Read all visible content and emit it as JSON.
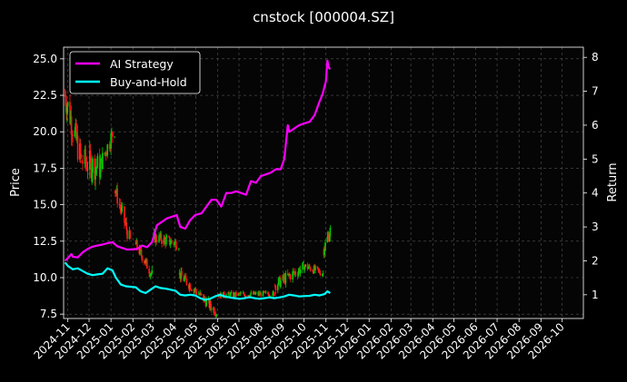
{
  "chart_data": {
    "type": "line",
    "title": "cnstock [000004.SZ]",
    "ylabel_left": "Price",
    "ylabel_right": "Return",
    "ylim_left": [
      7.2,
      25.8
    ],
    "ylim_right": [
      0.3,
      8.3
    ],
    "x_range": [
      "2024-10-26",
      "2026-10-31"
    ],
    "grid": true,
    "legend_placement": "top-left",
    "x_ticks": [
      "2024-11",
      "2024-12",
      "2025-01",
      "2025-02",
      "2025-03",
      "2025-04",
      "2025-05",
      "2025-06",
      "2025-07",
      "2025-08",
      "2025-09",
      "2025-10",
      "2025-11",
      "2025-12",
      "2026-01",
      "2026-02",
      "2026-03",
      "2026-04",
      "2026-05",
      "2026-06",
      "2026-07",
      "2026-08",
      "2026-09",
      "2026-10"
    ],
    "y_ticks_left": [
      "7.5",
      "10.0",
      "12.5",
      "15.0",
      "17.5",
      "20.0",
      "22.5",
      "25.0"
    ],
    "y_ticks_right": [
      "1",
      "2",
      "3",
      "4",
      "5",
      "6",
      "7",
      "8"
    ],
    "colors": {
      "ai": "#ff00ff",
      "bh": "#00ffff",
      "up": "#00cc00",
      "down": "#ff1a1a",
      "grid": "#555555"
    },
    "series": [
      {
        "name": "AI Strategy",
        "axis": "right",
        "points": [
          [
            "2024-10-28",
            2.0
          ],
          [
            "2024-11-01",
            2.08
          ],
          [
            "2024-11-06",
            2.2
          ],
          [
            "2024-11-08",
            2.12
          ],
          [
            "2024-11-15",
            2.1
          ],
          [
            "2024-11-22",
            2.25
          ],
          [
            "2024-11-29",
            2.35
          ],
          [
            "2024-12-06",
            2.42
          ],
          [
            "2024-12-13",
            2.45
          ],
          [
            "2024-12-20",
            2.48
          ],
          [
            "2024-12-27",
            2.52
          ],
          [
            "2025-01-03",
            2.55
          ],
          [
            "2025-01-10",
            2.43
          ],
          [
            "2025-01-17",
            2.38
          ],
          [
            "2025-01-24",
            2.33
          ],
          [
            "2025-02-07",
            2.35
          ],
          [
            "2025-02-14",
            2.45
          ],
          [
            "2025-02-21",
            2.4
          ],
          [
            "2025-02-28",
            2.55
          ],
          [
            "2025-03-07",
            3.05
          ],
          [
            "2025-03-14",
            3.15
          ],
          [
            "2025-03-21",
            3.25
          ],
          [
            "2025-03-28",
            3.3
          ],
          [
            "2025-04-04",
            3.35
          ],
          [
            "2025-04-09",
            3.0
          ],
          [
            "2025-04-16",
            2.95
          ],
          [
            "2025-04-23",
            3.2
          ],
          [
            "2025-04-30",
            3.35
          ],
          [
            "2025-05-09",
            3.4
          ],
          [
            "2025-05-16",
            3.6
          ],
          [
            "2025-05-23",
            3.8
          ],
          [
            "2025-05-30",
            3.8
          ],
          [
            "2025-06-06",
            3.6
          ],
          [
            "2025-06-13",
            4.0
          ],
          [
            "2025-06-20",
            4.0
          ],
          [
            "2025-06-27",
            4.05
          ],
          [
            "2025-07-04",
            4.0
          ],
          [
            "2025-07-11",
            3.95
          ],
          [
            "2025-07-18",
            4.35
          ],
          [
            "2025-07-25",
            4.3
          ],
          [
            "2025-08-01",
            4.5
          ],
          [
            "2025-08-08",
            4.55
          ],
          [
            "2025-08-15",
            4.6
          ],
          [
            "2025-08-22",
            4.7
          ],
          [
            "2025-08-29",
            4.7
          ],
          [
            "2025-09-03",
            5.0
          ],
          [
            "2025-09-05",
            5.4
          ],
          [
            "2025-09-08",
            6.0
          ],
          [
            "2025-09-10",
            5.8
          ],
          [
            "2025-09-17",
            5.9
          ],
          [
            "2025-09-24",
            6.0
          ],
          [
            "2025-10-01",
            6.05
          ],
          [
            "2025-10-09",
            6.1
          ],
          [
            "2025-10-16",
            6.3
          ],
          [
            "2025-10-23",
            6.7
          ],
          [
            "2025-10-27",
            6.9
          ],
          [
            "2025-11-01",
            7.3
          ],
          [
            "2025-11-03",
            7.9
          ],
          [
            "2025-11-05",
            7.7
          ],
          [
            "2025-11-07",
            7.65
          ]
        ]
      },
      {
        "name": "Buy-and-Hold",
        "axis": "right",
        "points": [
          [
            "2024-10-28",
            1.95
          ],
          [
            "2024-11-01",
            1.85
          ],
          [
            "2024-11-08",
            1.75
          ],
          [
            "2024-11-15",
            1.78
          ],
          [
            "2024-11-22",
            1.7
          ],
          [
            "2024-11-29",
            1.62
          ],
          [
            "2024-12-06",
            1.58
          ],
          [
            "2024-12-13",
            1.6
          ],
          [
            "2024-12-20",
            1.62
          ],
          [
            "2024-12-27",
            1.78
          ],
          [
            "2025-01-03",
            1.72
          ],
          [
            "2025-01-08",
            1.5
          ],
          [
            "2025-01-15",
            1.3
          ],
          [
            "2025-01-22",
            1.25
          ],
          [
            "2025-02-05",
            1.22
          ],
          [
            "2025-02-12",
            1.1
          ],
          [
            "2025-02-19",
            1.05
          ],
          [
            "2025-02-26",
            1.15
          ],
          [
            "2025-03-05",
            1.25
          ],
          [
            "2025-03-12",
            1.2
          ],
          [
            "2025-03-19",
            1.18
          ],
          [
            "2025-03-26",
            1.15
          ],
          [
            "2025-04-02",
            1.12
          ],
          [
            "2025-04-09",
            1.0
          ],
          [
            "2025-04-16",
            0.98
          ],
          [
            "2025-04-23",
            1.0
          ],
          [
            "2025-04-30",
            0.98
          ],
          [
            "2025-05-07",
            0.9
          ],
          [
            "2025-05-14",
            0.85
          ],
          [
            "2025-05-21",
            0.88
          ],
          [
            "2025-05-28",
            0.95
          ],
          [
            "2025-06-04",
            1.0
          ],
          [
            "2025-06-11",
            0.95
          ],
          [
            "2025-06-18",
            0.92
          ],
          [
            "2025-06-25",
            0.9
          ],
          [
            "2025-07-02",
            0.88
          ],
          [
            "2025-07-09",
            0.9
          ],
          [
            "2025-07-16",
            0.93
          ],
          [
            "2025-07-23",
            0.9
          ],
          [
            "2025-07-30",
            0.88
          ],
          [
            "2025-08-06",
            0.9
          ],
          [
            "2025-08-13",
            0.92
          ],
          [
            "2025-08-20",
            0.9
          ],
          [
            "2025-08-27",
            0.92
          ],
          [
            "2025-09-03",
            0.95
          ],
          [
            "2025-09-10",
            1.0
          ],
          [
            "2025-09-17",
            0.98
          ],
          [
            "2025-09-24",
            0.95
          ],
          [
            "2025-10-01",
            0.96
          ],
          [
            "2025-10-09",
            0.97
          ],
          [
            "2025-10-16",
            1.0
          ],
          [
            "2025-10-23",
            0.98
          ],
          [
            "2025-10-30",
            1.02
          ],
          [
            "2025-11-03",
            1.1
          ],
          [
            "2025-11-07",
            1.05
          ]
        ]
      }
    ],
    "candlestick_segments": [
      {
        "from": "2024-10-28",
        "to": "2024-11-20",
        "start": 22.5,
        "end": 18.0,
        "vol": 1.3
      },
      {
        "from": "2024-11-21",
        "to": "2024-12-18",
        "start": 18.0,
        "end": 17.5,
        "vol": 1.2
      },
      {
        "from": "2024-12-19",
        "to": "2025-01-06",
        "start": 18.0,
        "end": 20.2,
        "vol": 0.8
      },
      {
        "from": "2025-01-07",
        "to": "2025-01-28",
        "start": 16.0,
        "end": 12.5,
        "vol": 0.7
      },
      {
        "from": "2025-02-05",
        "to": "2025-02-28",
        "start": 12.3,
        "end": 10.2,
        "vol": 0.5
      },
      {
        "from": "2025-03-01",
        "to": "2025-04-07",
        "start": 12.8,
        "end": 12.3,
        "vol": 0.5
      },
      {
        "from": "2025-04-08",
        "to": "2025-05-31",
        "start": 10.2,
        "end": 7.6,
        "vol": 0.45
      },
      {
        "from": "2025-06-01",
        "to": "2025-08-20",
        "start": 8.8,
        "end": 8.9,
        "vol": 0.25
      },
      {
        "from": "2025-08-21",
        "to": "2025-09-30",
        "start": 9.5,
        "end": 10.7,
        "vol": 0.5
      },
      {
        "from": "2025-10-01",
        "to": "2025-10-28",
        "start": 10.8,
        "end": 10.3,
        "vol": 0.35
      },
      {
        "from": "2025-10-29",
        "to": "2025-11-07",
        "start": 12.0,
        "end": 13.2,
        "vol": 0.6
      }
    ]
  }
}
